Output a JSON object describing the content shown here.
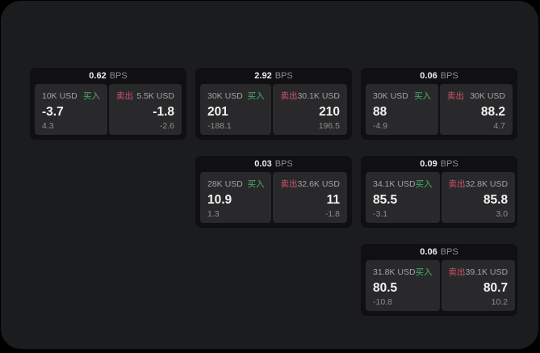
{
  "theme": {
    "page_bg": "#000000",
    "stage_bg": "#1b1c1e",
    "card_bg": "#101012",
    "panel_bg": "#29292b",
    "buy_color": "#4aae68",
    "sell_color": "#d0536e",
    "value_color": "#f2f2f2",
    "muted_color": "#8d8d8d"
  },
  "labels": {
    "buy": "买入",
    "sell": "卖出",
    "bps_unit": "BPS"
  },
  "cards": [
    {
      "bps": "0.62",
      "buy": {
        "amount": "10K USD",
        "value": "-3.7",
        "sub": "4.3"
      },
      "sell": {
        "amount": "5.5K USD",
        "value": "-1.8",
        "sub": "-2.6"
      }
    },
    {
      "bps": "2.92",
      "buy": {
        "amount": "30K USD",
        "value": "201",
        "sub": "-188.1"
      },
      "sell": {
        "amount": "30.1K USD",
        "value": "210",
        "sub": "196.5"
      }
    },
    {
      "bps": "0.06",
      "buy": {
        "amount": "30K USD",
        "value": "88",
        "sub": "-4.9"
      },
      "sell": {
        "amount": "30K USD",
        "value": "88.2",
        "sub": "4.7"
      }
    },
    {
      "bps": "0.03",
      "buy": {
        "amount": "28K USD",
        "value": "10.9",
        "sub": "1.3"
      },
      "sell": {
        "amount": "32.6K USD",
        "value": "11",
        "sub": "-1.8"
      }
    },
    {
      "bps": "0.09",
      "buy": {
        "amount": "34.1K USD",
        "value": "85.5",
        "sub": "-3.1"
      },
      "sell": {
        "amount": "32.8K USD",
        "value": "85.8",
        "sub": "3.0"
      }
    },
    {
      "bps": "0.06",
      "buy": {
        "amount": "31.8K USD",
        "value": "80.5",
        "sub": "-10.8"
      },
      "sell": {
        "amount": "39.1K USD",
        "value": "80.7",
        "sub": "10.2"
      }
    }
  ]
}
